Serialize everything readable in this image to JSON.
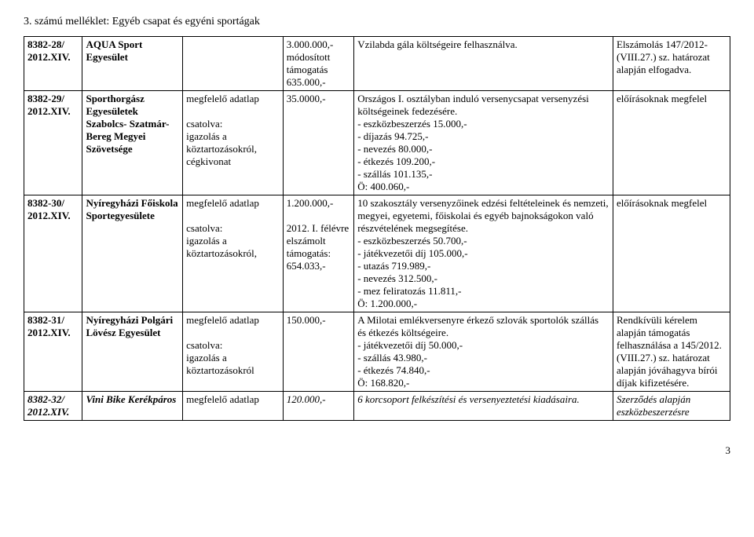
{
  "title": "3. számú melléklet: Egyéb csapat és egyéni sportágak",
  "page_number": "3",
  "rows": [
    {
      "code": "8382-28/ 2012.XIV.",
      "org": "AQUA Sport Egyesület",
      "attach": "",
      "amount": "3.000.000,- módosított támogatás 635.000,-",
      "purpose": "Vzilabda gála költségeire felhasználva.",
      "note": "Elszámolás 147/2012- (VIII.27.) sz. határozat alapján elfogadva."
    },
    {
      "code": "8382-29/ 2012.XIV.",
      "org": "Sporthorgász Egyesületek Szabolcs- Szatmár-Bereg Megyei Szövetsége",
      "attach_a": "megfelelő adatlap",
      "attach_b": "csatolva:\nigazolás a köztartozásokról, cégkivonat",
      "amount": "35.0000,-",
      "purpose": "Országos I. osztályban induló versenycsapat versenyzési költségeinek fedezésére.\n- eszközbeszerzés 15.000,-\n- díjazás 94.725,-\n- nevezés 80.000,-\n- étkezés 109.200,-\n- szállás 101.135,-\nÖ: 400.060,-",
      "note": "előírásoknak megfelel"
    },
    {
      "code": "8382-30/ 2012.XIV.",
      "org": "Nyíregyházi Főiskola Sportegyesülete",
      "attach_a": "megfelelő adatlap",
      "attach_b": "csatolva:\nigazolás a köztartozásokról,",
      "amount": "1.200.000,-\n\n2012. I. félévre elszámolt támogatás: 654.033,-",
      "purpose": "10 szakosztály versenyzőinek edzési feltételeinek és nemzeti, megyei, egyetemi, főiskolai és egyéb bajnokságokon való részvételének megsegítése.\n- eszközbeszerzés 50.700,-\n- játékvezetői díj 105.000,-\n- utazás 719.989,-\n- nevezés 312.500,-\n- mez feliratozás 11.811,-\nÖ: 1.200.000,-",
      "note": "előírásoknak megfelel"
    },
    {
      "code": "8382-31/ 2012.XIV.",
      "org": "Nyíregyházi Polgári Lövész Egyesület",
      "attach_a": "megfelelő adatlap",
      "attach_b": "csatolva:\nigazolás a köztartozásokról",
      "amount": "150.000,-",
      "purpose": "A Milotai emlékversenyre érkező szlovák sportolók szállás és étkezés költségeire.\n- játékvezetői díj 50.000,-\n- szállás 43.980,-\n- étkezés 74.840,-\nÖ: 168.820,-",
      "note": "Rendkívüli kérelem alapján támogatás felhasználása a 145/2012. (VIII.27.) sz. határozat alapján jóváhagyva bírói díjak kifizetésére."
    },
    {
      "code": "8382-32/ 2012.XIV.",
      "org": "Vini Bike Kerékpáros",
      "attach": "megfelelő adatlap",
      "amount": "120.000,-",
      "purpose": "6 korcsoport felkészítési és versenyeztetési kiadásaira.",
      "note": "Szerződés alapján eszközbeszerzésre"
    }
  ]
}
